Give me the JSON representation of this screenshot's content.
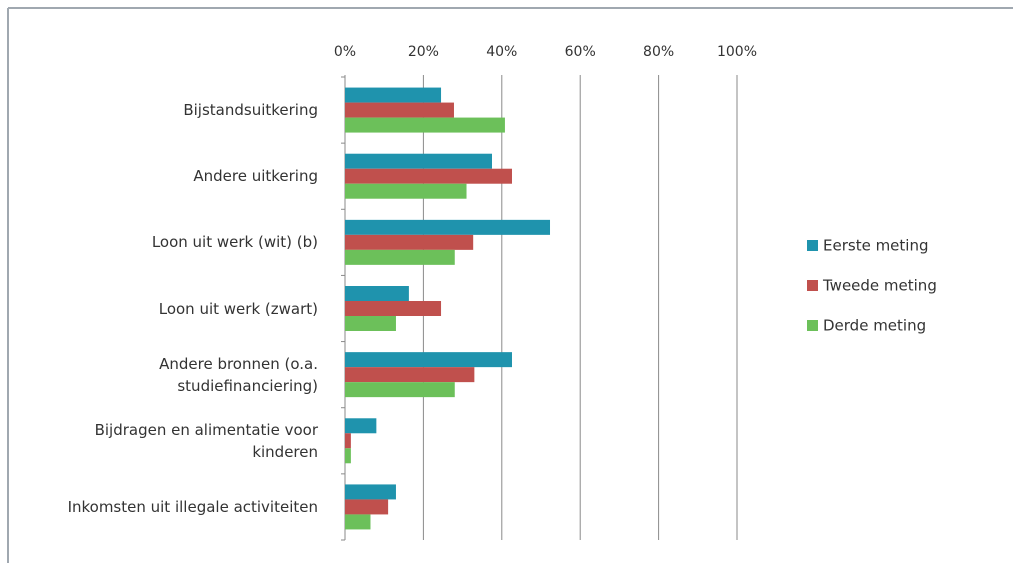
{
  "chart_data": {
    "type": "bar",
    "orientation": "horizontal",
    "categories": [
      "Bijstandsuitkering",
      "Andere uitkering",
      "Loon uit werk (wit) (b)",
      "Loon uit werk (zwart)",
      "Andere bronnen (o.a.\nstudiefinanciering)",
      "Bijdragen en alimentatie voor\nkinderen",
      "Inkomsten uit illegale activiteiten"
    ],
    "series": [
      {
        "name": "Eerste meting",
        "color": "#1f93ad",
        "values": [
          24.5,
          37.5,
          52.3,
          16.3,
          42.6,
          8,
          13
        ]
      },
      {
        "name": "Tweede meting",
        "color": "#c0504d",
        "values": [
          27.8,
          42.6,
          32.7,
          24.5,
          33,
          1.5,
          11
        ]
      },
      {
        "name": "Derde meting",
        "color": "#6cc05a",
        "values": [
          40.8,
          31,
          28,
          13,
          28,
          1.5,
          6.5
        ]
      }
    ],
    "xlim": [
      0,
      100
    ],
    "xticks": [
      {
        "value": 0,
        "label": "0%"
      },
      {
        "value": 20,
        "label": "20%"
      },
      {
        "value": 40,
        "label": "40%"
      },
      {
        "value": 60,
        "label": "60%"
      },
      {
        "value": 80,
        "label": "80%"
      },
      {
        "value": 100,
        "label": "100%"
      }
    ],
    "grid": true,
    "legend": "right"
  }
}
